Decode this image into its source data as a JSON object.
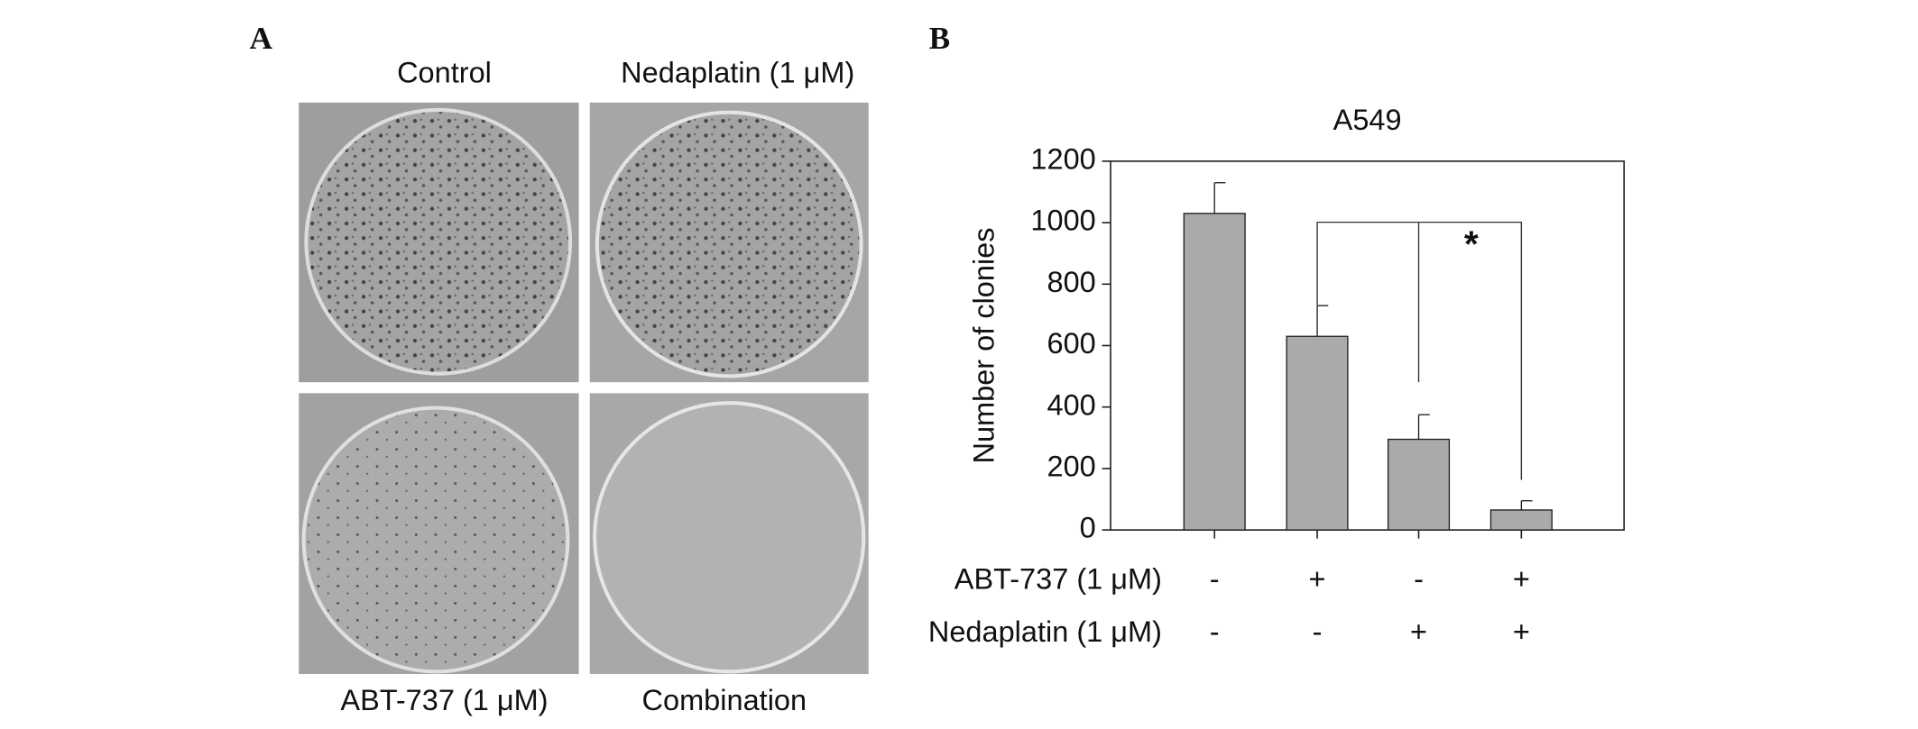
{
  "panel_labels": [
    "A",
    "B"
  ],
  "plates": [
    "Control",
    "Nedaplatin (1 μM)",
    "ABT-737 (1 μM)",
    "Combination"
  ],
  "chart_data": {
    "type": "bar",
    "title": "A549",
    "y_label": "Number of clonies",
    "values": [
      1030,
      630,
      295,
      65
    ],
    "errors": [
      100,
      100,
      80,
      30
    ],
    "color": "#aaaaac",
    "treatments": [
      {
        "name": "ABT-737 (1 μM)",
        "signs": [
          "-",
          "+",
          "-",
          "+"
        ]
      },
      {
        "name": "Nedaplatin (1 μM)",
        "signs": [
          "-",
          "-",
          "+",
          "+"
        ]
      }
    ],
    "annotation": "*",
    "ylim": [
      0,
      1200
    ],
    "yticks": [
      0,
      200,
      400,
      600,
      800,
      1000,
      1200
    ]
  }
}
